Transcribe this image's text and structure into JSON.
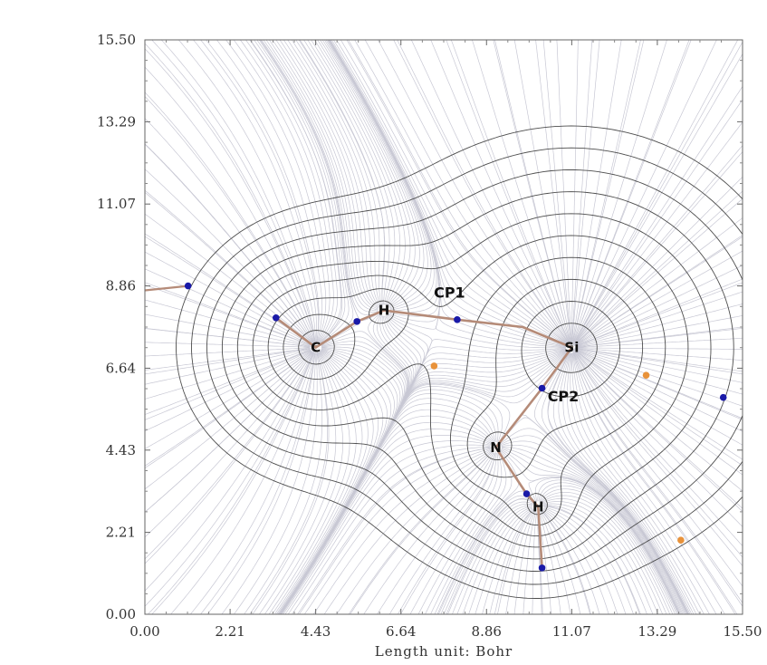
{
  "chart_data": {
    "type": "contour",
    "xlabel": "Length unit: Bohr",
    "xlim": [
      0,
      15.5
    ],
    "ylim": [
      0,
      15.5
    ],
    "x_ticks": [
      "0.00",
      "2.21",
      "4.43",
      "6.64",
      "8.86",
      "11.07",
      "13.29",
      "15.50"
    ],
    "y_ticks": [
      "0.00",
      "2.21",
      "4.43",
      "6.64",
      "8.86",
      "11.07",
      "13.29",
      "15.50"
    ],
    "atoms": [
      {
        "label": "C",
        "x": 4.43,
        "y": 7.2
      },
      {
        "label": "H",
        "x": 6.2,
        "y": 8.2
      },
      {
        "label": "Si",
        "x": 11.07,
        "y": 7.2
      },
      {
        "label": "N",
        "x": 9.1,
        "y": 4.5
      },
      {
        "label": "H",
        "x": 10.2,
        "y": 2.9
      }
    ],
    "bonds": [
      {
        "points": [
          [
            4.43,
            7.2
          ],
          [
            3.4,
            8.0
          ]
        ]
      },
      {
        "points": [
          [
            4.43,
            7.2
          ],
          [
            5.5,
            7.9
          ],
          [
            6.2,
            8.2
          ]
        ]
      },
      {
        "points": [
          [
            6.2,
            8.2
          ],
          [
            8.1,
            7.95
          ],
          [
            9.8,
            7.75
          ],
          [
            11.07,
            7.2
          ]
        ]
      },
      {
        "points": [
          [
            11.07,
            7.2
          ],
          [
            10.3,
            6.1
          ],
          [
            9.1,
            4.5
          ]
        ]
      },
      {
        "points": [
          [
            9.1,
            4.5
          ],
          [
            9.9,
            3.25
          ],
          [
            10.2,
            2.9
          ],
          [
            10.3,
            1.25
          ]
        ]
      }
    ],
    "critical_points": [
      {
        "kind": "bond",
        "x": 1.12,
        "y": 8.86
      },
      {
        "kind": "bond",
        "x": 3.4,
        "y": 8.0
      },
      {
        "kind": "bond",
        "x": 5.5,
        "y": 7.9
      },
      {
        "kind": "bond",
        "x": 8.1,
        "y": 7.95
      },
      {
        "kind": "bond",
        "x": 10.3,
        "y": 6.1
      },
      {
        "kind": "bond",
        "x": 9.9,
        "y": 3.25
      },
      {
        "kind": "bond",
        "x": 10.3,
        "y": 1.25
      },
      {
        "kind": "bond",
        "x": 15.0,
        "y": 5.85
      },
      {
        "kind": "ring",
        "x": 7.5,
        "y": 6.7
      },
      {
        "kind": "ring",
        "x": 13.0,
        "y": 6.45
      },
      {
        "kind": "ring",
        "x": 13.9,
        "y": 2.0
      }
    ],
    "annotations": [
      {
        "text": "CP1",
        "x": 7.9,
        "y": 8.55
      },
      {
        "text": "CP2",
        "x": 10.85,
        "y": 5.75
      }
    ],
    "colors": {
      "bond_path": "#b58b78",
      "bond_cp": "#1a1aa8",
      "ring_cp": "#e8923a",
      "contour": "#4d4d4d",
      "gradient_lines": "#c8c8d4"
    }
  }
}
